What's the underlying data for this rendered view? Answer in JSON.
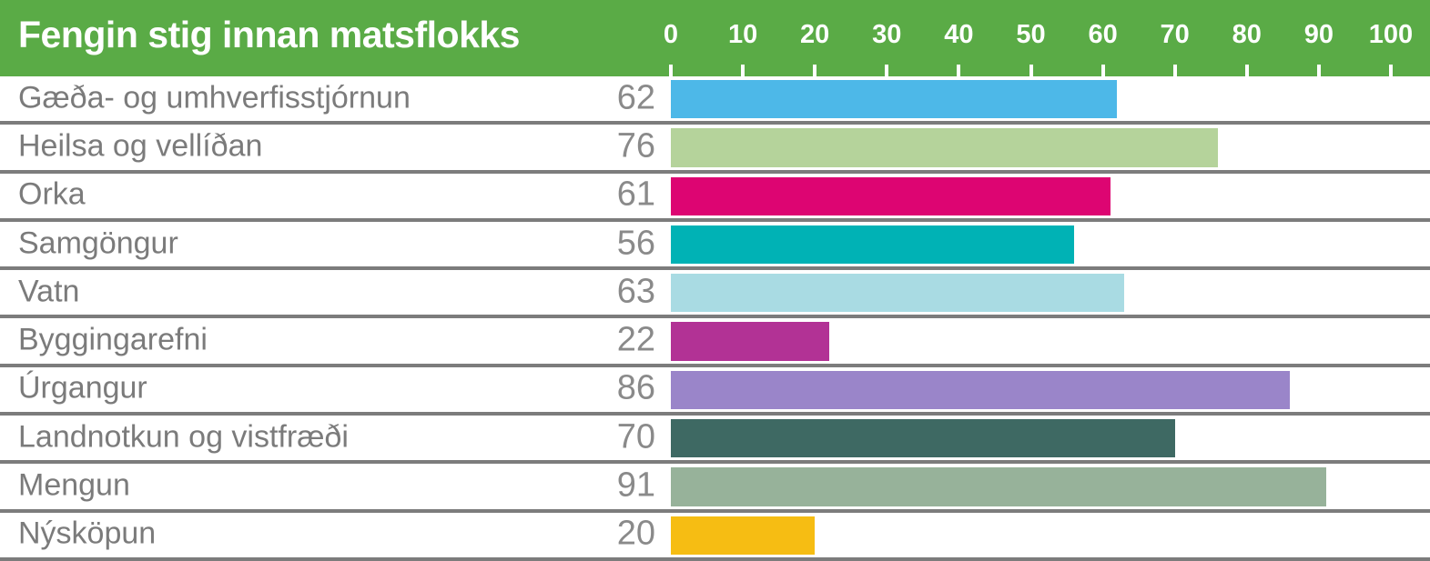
{
  "header": {
    "title": "Fengin stig innan matsflokks",
    "background_color": "#5aab46",
    "text_color": "#ffffff",
    "axis_ticks": [
      "0",
      "10",
      "20",
      "30",
      "40",
      "50",
      "60",
      "70",
      "80",
      "90",
      "100"
    ]
  },
  "style": {
    "row_label_color": "#7b7b7b",
    "row_value_color": "#8a8a8a",
    "separator_color": "#7c7c7c",
    "divider_color": "#a3a3a3"
  },
  "chart_data": {
    "type": "bar",
    "orientation": "horizontal",
    "title": "Fengin stig innan matsflokks",
    "xlabel": "",
    "ylabel": "",
    "xlim": [
      0,
      100
    ],
    "grid": false,
    "legend": false,
    "categories": [
      "Gæða- og umhverfisstjórnun",
      "Heilsa og vellíðan",
      "Orka",
      "Samgöngur",
      "Vatn",
      "Byggingarefni",
      "Úrgangur",
      "Landnotkun og vistfræði",
      "Mengun",
      "Nýsköpun"
    ],
    "values": [
      62,
      76,
      61,
      56,
      63,
      22,
      86,
      70,
      91,
      20
    ],
    "bar_colors": [
      "#4db8e8",
      "#b5d39b",
      "#dd0572",
      "#00b2b5",
      "#a9dbe3",
      "#b23295",
      "#9a85c9",
      "#3e6963",
      "#97b29a",
      "#f6bd13"
    ]
  }
}
